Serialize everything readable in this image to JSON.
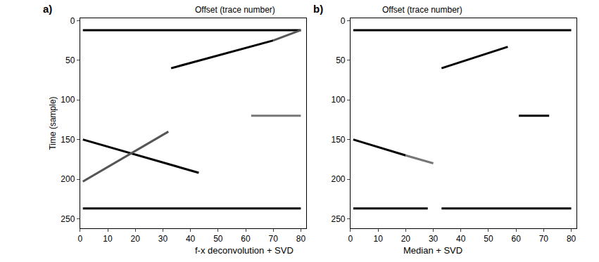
{
  "chart_data": [
    {
      "type": "line",
      "label": "a)",
      "title": "f-x deconvolution + SVD",
      "x_label": "Offset (trace number)",
      "y_label": "Time (sample)",
      "xlim": [
        0,
        82
      ],
      "xticks": [
        0,
        10,
        20,
        30,
        40,
        50,
        60,
        70,
        80
      ],
      "ylim": [
        262,
        -3
      ],
      "yticks": [
        0,
        50,
        100,
        150,
        200,
        250
      ],
      "grid": false,
      "series": [
        {
          "color": "#000000",
          "x": [
            1,
            80
          ],
          "values": [
            12,
            12
          ]
        },
        {
          "color": "#000000",
          "x": [
            33,
            70
          ],
          "values": [
            60,
            25
          ]
        },
        {
          "color": "#555555",
          "x": [
            70,
            80
          ],
          "values": [
            25,
            12
          ]
        },
        {
          "color": "#000000",
          "x": [
            1,
            43
          ],
          "values": [
            150,
            192
          ]
        },
        {
          "color": "#555555",
          "x": [
            1,
            32
          ],
          "values": [
            203,
            140
          ]
        },
        {
          "color": "#777777",
          "x": [
            62,
            80
          ],
          "values": [
            120,
            120
          ]
        },
        {
          "color": "#000000",
          "x": [
            1,
            80
          ],
          "values": [
            237,
            237
          ]
        }
      ]
    },
    {
      "type": "line",
      "label": "b)",
      "title": "Median + SVD",
      "x_label": "Offset (trace number)",
      "xlim": [
        0,
        82
      ],
      "xticks": [
        0,
        10,
        20,
        30,
        40,
        50,
        60,
        70,
        80
      ],
      "ylim": [
        262,
        -3
      ],
      "yticks": [
        0,
        50,
        100,
        150,
        200,
        250
      ],
      "grid": false,
      "series": [
        {
          "color": "#000000",
          "x": [
            1,
            80
          ],
          "values": [
            12,
            12
          ]
        },
        {
          "color": "#000000",
          "x": [
            33,
            57
          ],
          "values": [
            60,
            33
          ]
        },
        {
          "color": "#000000",
          "x": [
            61,
            72
          ],
          "values": [
            120,
            120
          ]
        },
        {
          "color": "#000000",
          "x": [
            1,
            20
          ],
          "values": [
            150,
            170
          ]
        },
        {
          "color": "#777777",
          "x": [
            20,
            30
          ],
          "values": [
            170,
            180
          ]
        },
        {
          "color": "#000000",
          "x": [
            1,
            28
          ],
          "values": [
            237,
            237
          ]
        },
        {
          "color": "#000000",
          "x": [
            33,
            80
          ],
          "values": [
            237,
            237
          ]
        }
      ]
    }
  ]
}
